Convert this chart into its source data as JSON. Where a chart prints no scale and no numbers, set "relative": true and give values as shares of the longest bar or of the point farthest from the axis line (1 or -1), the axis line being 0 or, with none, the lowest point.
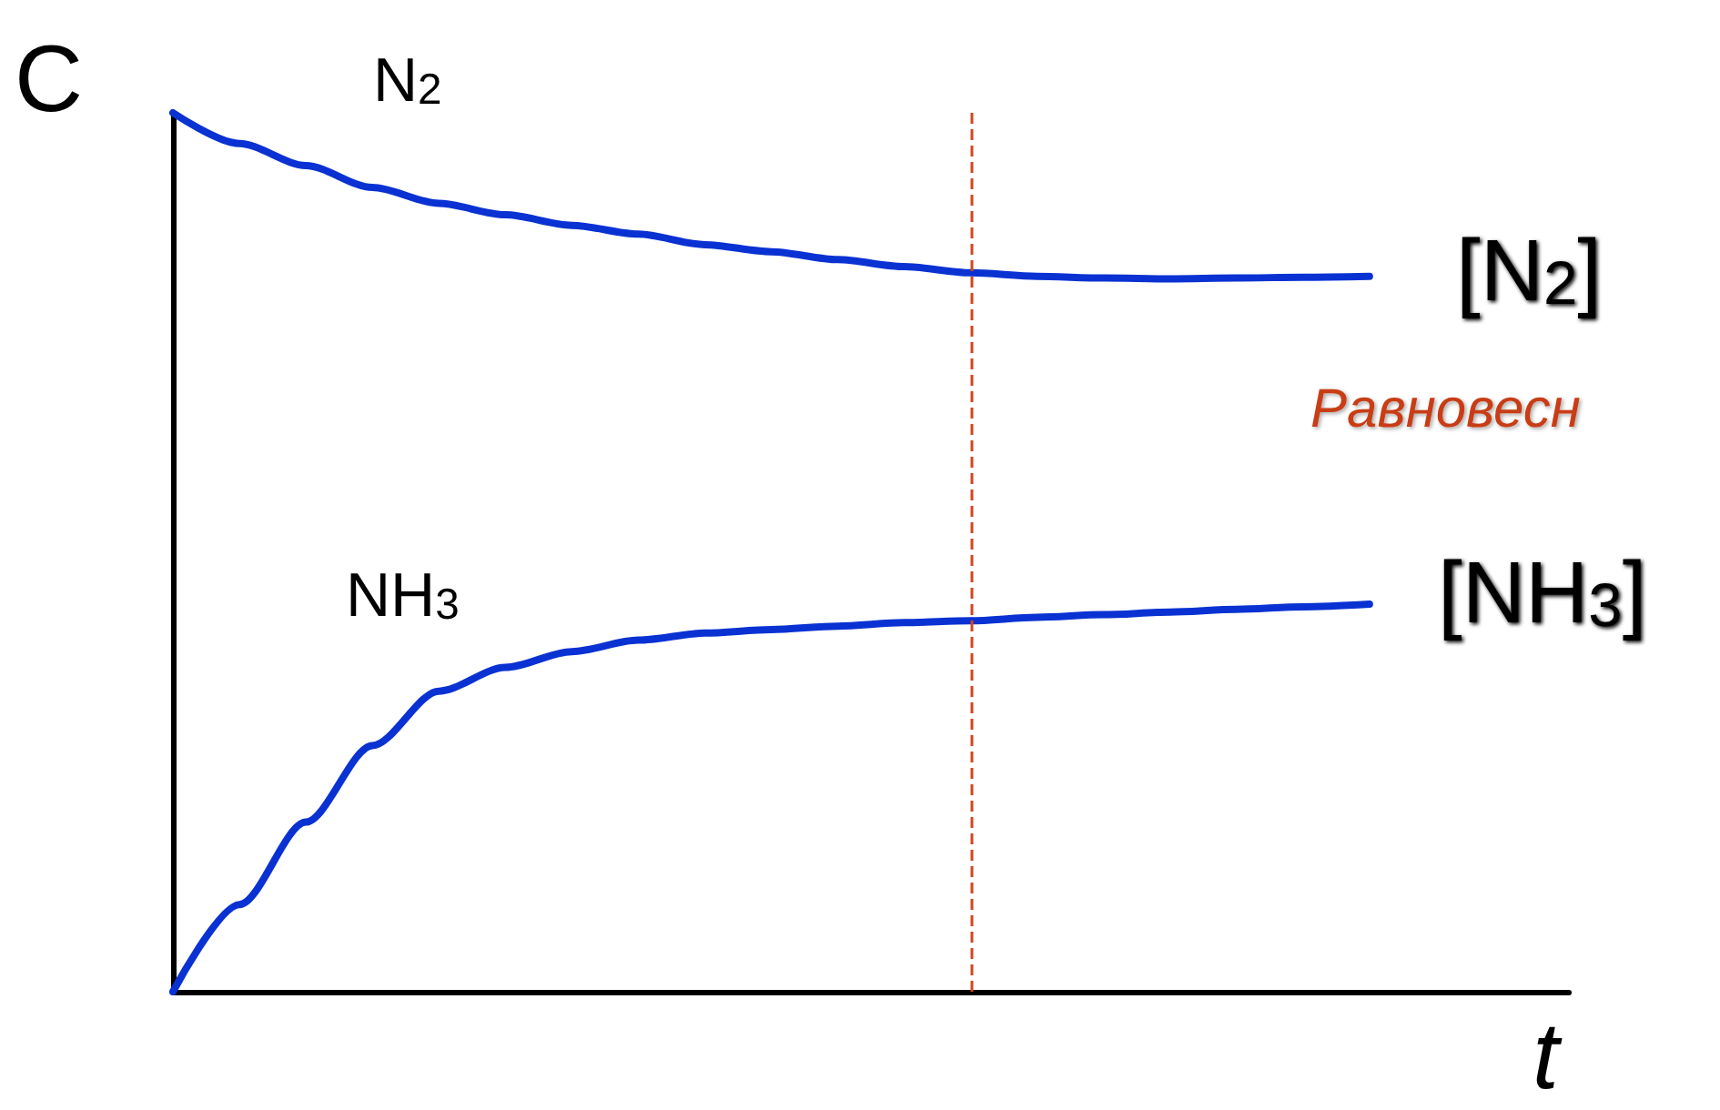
{
  "chart_data": {
    "type": "line",
    "relative": true,
    "xlabel": "t",
    "ylabel": "C",
    "legend": false,
    "grid": false,
    "marker": "none",
    "line_style": "solid",
    "categories": [
      null,
      null,
      null,
      null,
      null,
      null,
      null,
      null,
      null,
      null,
      null,
      null,
      null,
      null,
      null,
      null,
      null,
      null,
      null,
      null,
      null,
      null
    ],
    "series": [
      {
        "name": "N$_{2}$",
        "color": "#0a32d2",
        "values": [
          1.0,
          0.965,
          0.94,
          0.915,
          0.897,
          0.884,
          0.872,
          0.862,
          0.85,
          0.842,
          0.833,
          0.825,
          0.818,
          0.814,
          0.812,
          0.811,
          0.812,
          0.813,
          0.814,
          null,
          null,
          null
        ]
      },
      {
        "name": "NH$_{3}$",
        "color": "#0a32d2",
        "values": [
          0,
          0.099,
          0.193,
          0.28,
          0.342,
          0.369,
          0.387,
          0.4,
          0.408,
          0.412,
          0.416,
          0.42,
          0.422,
          0.426,
          0.429,
          0.432,
          0.435,
          0.438,
          0.441,
          null,
          null,
          null
        ]
      }
    ],
    "annotations": [
      "[N$_{2}$]",
      "Равновесн",
      "[NH$_{3}$]"
    ]
  }
}
